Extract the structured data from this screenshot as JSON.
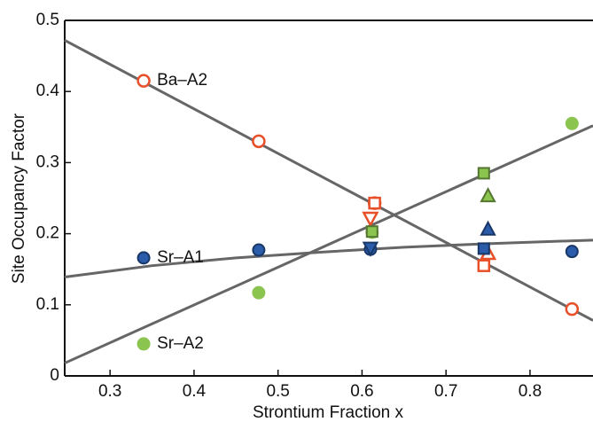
{
  "chart_data": {
    "type": "scatter",
    "xlabel": "Strontium Fraction x",
    "ylabel": "Site Occupancy Factor",
    "xlim": [
      0.246,
      0.875
    ],
    "ylim": [
      0,
      0.5
    ],
    "xticks": [
      0.3,
      0.4,
      0.5,
      0.6,
      0.7,
      0.8
    ],
    "yticks": [
      0,
      0.1,
      0.2,
      0.3,
      0.4,
      0.5
    ],
    "series": [
      {
        "name": "Ba–A2",
        "color": "#e8502a",
        "filled": false,
        "marker": "circle",
        "x": [
          0.34,
          0.477,
          0.615,
          0.85
        ],
        "values": [
          0.415,
          0.33,
          0.243,
          0.094
        ]
      },
      {
        "name": "Sr–A1",
        "color": "#2a5caa",
        "filled": true,
        "marker": "circle",
        "x": [
          0.34,
          0.477,
          0.61,
          0.85
        ],
        "values": [
          0.166,
          0.177,
          0.178,
          0.175
        ]
      },
      {
        "name": "Sr–A2",
        "color": "#8cc450",
        "filled": true,
        "marker": "circle",
        "x": [
          0.34,
          0.477,
          0.612,
          0.85
        ],
        "values": [
          0.045,
          0.117,
          0.202,
          0.355
        ]
      },
      {
        "color": "#e8502a",
        "filled": false,
        "marker": "square",
        "x": [
          0.615,
          0.745
        ],
        "values": [
          0.243,
          0.155
        ]
      },
      {
        "color": "#e8502a",
        "filled": false,
        "marker": "triangle-down",
        "x": [
          0.61
        ],
        "values": [
          0.222
        ]
      },
      {
        "color": "#e8502a",
        "filled": false,
        "marker": "triangle-up",
        "x": [
          0.75
        ],
        "values": [
          0.172
        ]
      },
      {
        "color": "#2a5caa",
        "filled": true,
        "marker": "triangle-down",
        "x": [
          0.61
        ],
        "values": [
          0.18
        ]
      },
      {
        "color": "#2a5caa",
        "filled": true,
        "marker": "triangle-up",
        "x": [
          0.75
        ],
        "values": [
          0.206
        ]
      },
      {
        "color": "#2a5caa",
        "filled": true,
        "marker": "square",
        "x": [
          0.745
        ],
        "values": [
          0.179
        ]
      },
      {
        "color": "#8cc450",
        "filled": true,
        "marker": "square",
        "x": [
          0.612,
          0.745
        ],
        "values": [
          0.203,
          0.285
        ]
      },
      {
        "color": "#8cc450",
        "filled": true,
        "marker": "triangle-up",
        "x": [
          0.75
        ],
        "values": [
          0.253
        ]
      }
    ],
    "fits": [
      {
        "color": "#666666",
        "x": [
          0.246,
          0.875
        ],
        "values": [
          0.472,
          0.078
        ]
      },
      {
        "color": "#666666",
        "x": [
          0.246,
          0.35,
          0.45,
          0.55,
          0.65,
          0.75,
          0.875
        ],
        "values": [
          0.139,
          0.155,
          0.166,
          0.174,
          0.181,
          0.186,
          0.191
        ]
      },
      {
        "color": "#666666",
        "x": [
          0.246,
          0.875
        ],
        "values": [
          0.018,
          0.352
        ]
      }
    ]
  }
}
